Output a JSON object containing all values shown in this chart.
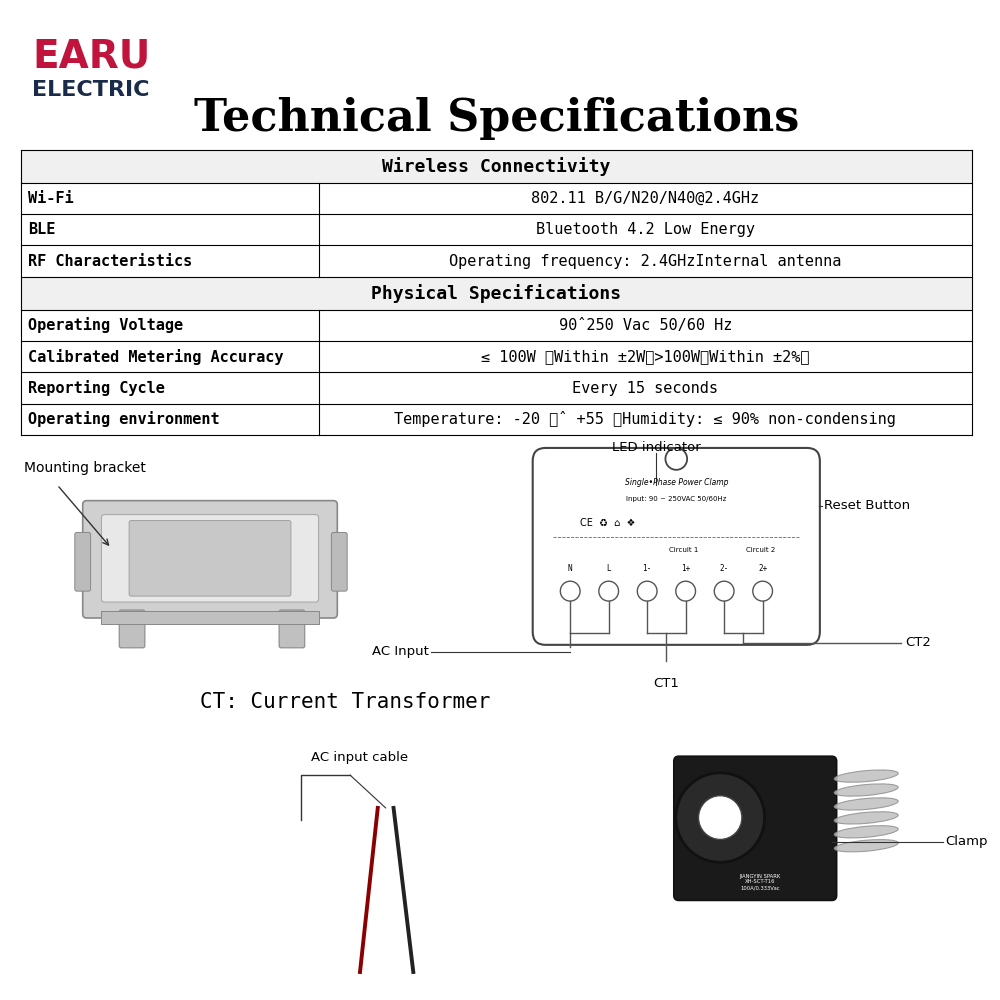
{
  "title": "Technical Specifications",
  "title_fontsize": 32,
  "title_fontweight": "bold",
  "logo_line1": "EARU",
  "logo_line2": "ELECTRIC",
  "logo_color1": "#c0143c",
  "logo_color2": "#1a2b4a",
  "bg_color": "#ffffff",
  "label_mounting": "Mounting bracket",
  "label_led": "LED indicator",
  "label_reset": "Reset Button",
  "label_ac_input": "AC Input",
  "label_ct1": "CT1",
  "label_ct2": "CT2",
  "label_ct_full": "CT: Current Transformer",
  "label_ac_cable": "AC input cable",
  "label_clamp": "Clamp",
  "table_font": "monospace",
  "section_header_fontsize": 13,
  "row_fontsize": 11,
  "table_border_color": "#000000",
  "section_bg": "#f0f0f0"
}
